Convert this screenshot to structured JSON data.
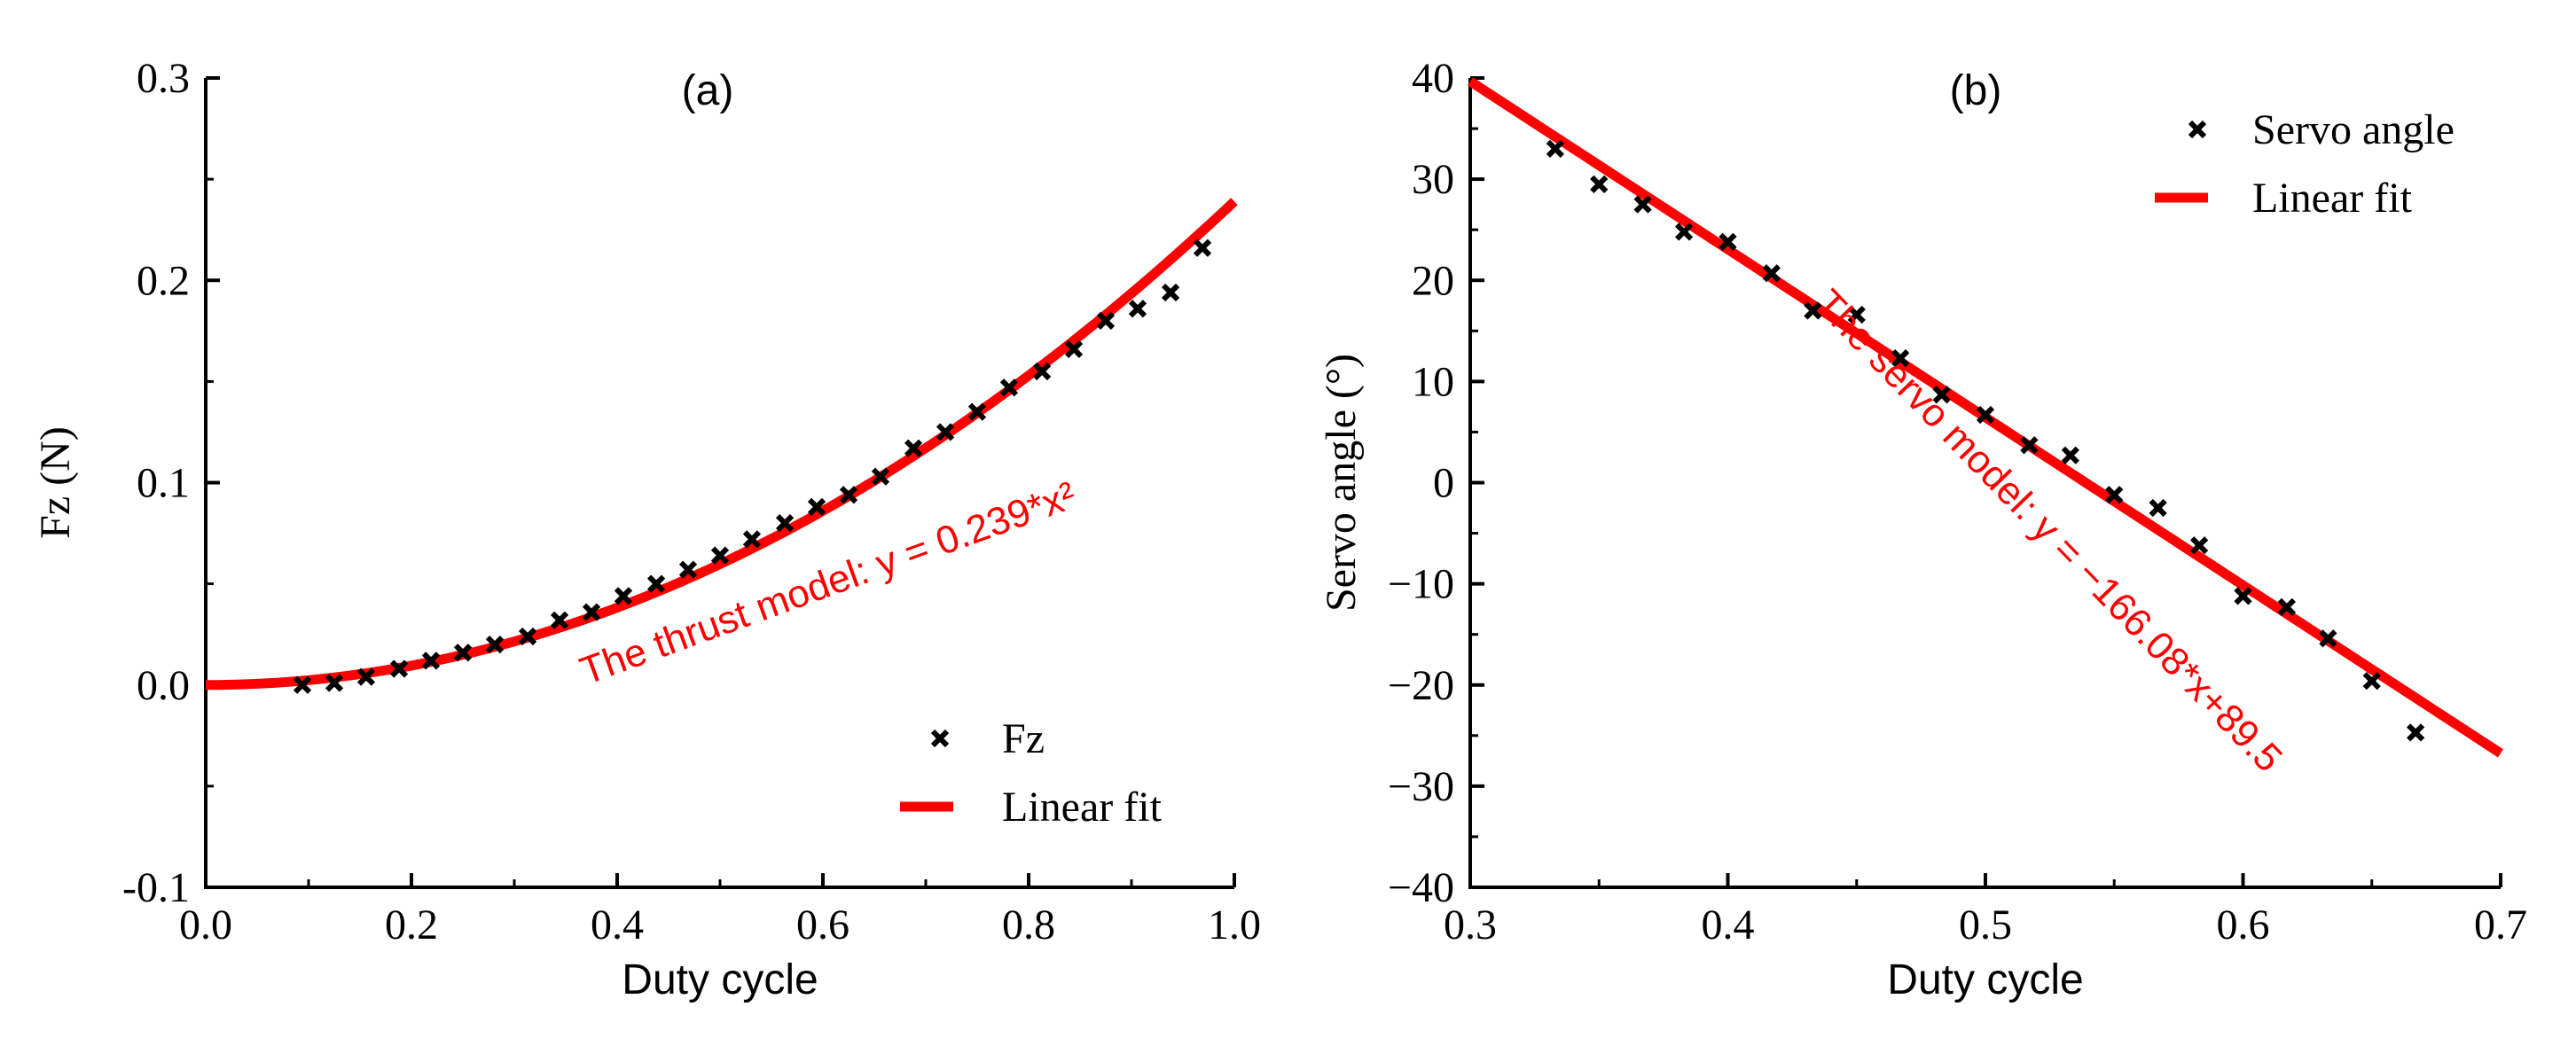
{
  "chart_data": [
    {
      "type": "scatter",
      "panel_label": "(a)",
      "title": "",
      "xlabel": "Duty cycle",
      "ylabel": "Fz (N)",
      "xlim": [
        0.0,
        1.0
      ],
      "ylim": [
        -0.1,
        0.3
      ],
      "xticks": [
        0.0,
        0.2,
        0.4,
        0.6,
        0.8,
        1.0
      ],
      "xtick_labels": [
        "0.0",
        "0.2",
        "0.4",
        "0.6",
        "0.8",
        "1.0"
      ],
      "yticks": [
        -0.1,
        0.0,
        0.1,
        0.2,
        0.3
      ],
      "ytick_labels": [
        "-0.1",
        "0.0",
        "0.1",
        "0.2",
        "0.3"
      ],
      "grid": false,
      "legend_position": "bottom-right",
      "series": [
        {
          "name": "Fz",
          "kind": "scatter",
          "marker": "x",
          "color": "#000000",
          "x": [
            0.094,
            0.125,
            0.156,
            0.188,
            0.219,
            0.25,
            0.281,
            0.313,
            0.344,
            0.375,
            0.406,
            0.438,
            0.469,
            0.5,
            0.531,
            0.563,
            0.594,
            0.625,
            0.656,
            0.688,
            0.719,
            0.75,
            0.781,
            0.813,
            0.844,
            0.875,
            0.906,
            0.938,
            0.969
          ],
          "y": [
            0.0,
            0.001,
            0.004,
            0.008,
            0.012,
            0.016,
            0.02,
            0.024,
            0.032,
            0.036,
            0.044,
            0.05,
            0.057,
            0.064,
            0.072,
            0.08,
            0.088,
            0.094,
            0.103,
            0.117,
            0.125,
            0.135,
            0.147,
            0.155,
            0.166,
            0.18,
            0.186,
            0.194,
            0.216
          ]
        },
        {
          "name": "Linear fit",
          "kind": "line",
          "color": "#ff0000",
          "function": "quadratic",
          "coefficient": 0.239,
          "x_range": [
            0.0,
            1.0
          ]
        }
      ],
      "annotation": {
        "text": "The thrust model: y = 0.239*x²",
        "color": "#ff0000",
        "anchor": [
          0.37,
          0.0
        ],
        "rotation": -20
      }
    },
    {
      "type": "scatter",
      "panel_label": "(b)",
      "title": "",
      "xlabel": "Duty cycle",
      "ylabel": "Servo angle (°)",
      "xlim": [
        0.3,
        0.7
      ],
      "ylim": [
        -40,
        40
      ],
      "xticks": [
        0.3,
        0.4,
        0.5,
        0.6,
        0.7
      ],
      "xtick_labels": [
        "0.3",
        "0.4",
        "0.5",
        "0.6",
        "0.7"
      ],
      "yticks": [
        -40,
        -30,
        -20,
        -10,
        0,
        10,
        20,
        30,
        40
      ],
      "ytick_labels": [
        "−40",
        "−30",
        "−20",
        "−10",
        "0",
        "10",
        "20",
        "30",
        "40"
      ],
      "grid": false,
      "legend_position": "top-right",
      "series": [
        {
          "name": "Servo angle",
          "kind": "scatter",
          "marker": "x",
          "color": "#000000",
          "x": [
            0.333,
            0.35,
            0.367,
            0.383,
            0.4,
            0.417,
            0.433,
            0.45,
            0.467,
            0.483,
            0.5,
            0.517,
            0.533,
            0.55,
            0.567,
            0.583,
            0.6,
            0.617,
            0.633,
            0.65,
            0.667
          ],
          "y": [
            33.0,
            29.5,
            27.5,
            24.8,
            23.8,
            20.7,
            17.0,
            16.6,
            12.3,
            8.7,
            6.7,
            3.7,
            2.7,
            -1.2,
            -2.5,
            -6.2,
            -11.2,
            -12.3,
            -15.4,
            -19.6,
            -24.7
          ]
        },
        {
          "name": "Linear fit",
          "kind": "line",
          "color": "#ff0000",
          "function": "linear",
          "slope": -166.08,
          "intercept": 89.5,
          "x_range": [
            0.3,
            0.7
          ]
        }
      ],
      "annotation": {
        "text": "The servo model: y = −166.08*x+89.5",
        "color": "#ff0000",
        "anchor": [
          0.433,
          17.5
        ],
        "rotation": 46
      }
    }
  ]
}
